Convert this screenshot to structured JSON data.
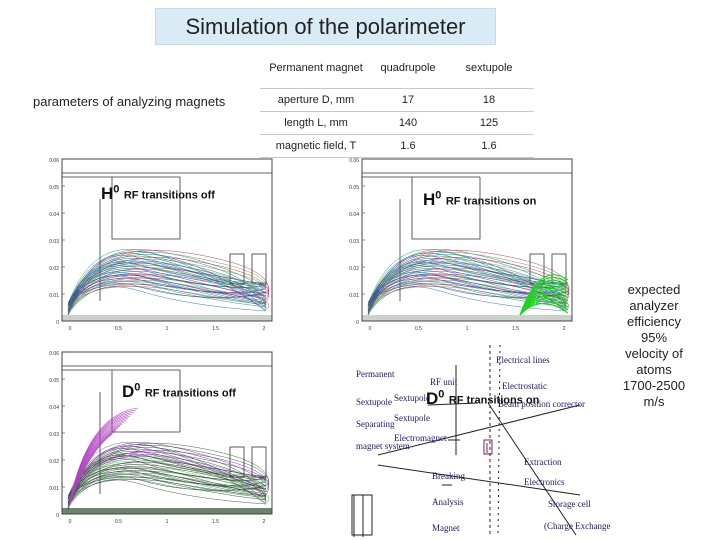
{
  "slide": {
    "title": "Simulation of the polarimeter",
    "side_label": "parameters of analyzing magnets"
  },
  "table": {
    "headers": [
      "Permanent magnet",
      "quadrupole",
      "sextupole"
    ],
    "rows": [
      {
        "label": "aperture D, mm",
        "quadrupole": "17",
        "sextupole": "18"
      },
      {
        "label": "length L, mm",
        "quadrupole": "140",
        "sextupole": "125"
      },
      {
        "label": "magnetic field, T",
        "quadrupole": "1.6",
        "sextupole": "1.6"
      }
    ]
  },
  "panels": {
    "top_left": {
      "isotope": "H",
      "sup": "0",
      "text": "RF transitions off",
      "yticks": [
        "0.06",
        "0.05",
        "0.04",
        "0.03",
        "0.02",
        "0.01",
        "0"
      ],
      "xticks": [
        "0",
        "0.5",
        "1",
        "1.5",
        "2"
      ]
    },
    "top_right": {
      "isotope": "H",
      "sup": "0",
      "text": "RF transitions on",
      "yticks": [
        "0.06",
        "0.05",
        "0.04",
        "0.03",
        "0.02",
        "0.01",
        "0"
      ],
      "xticks": [
        "0",
        "0.5",
        "1",
        "1.5",
        "2"
      ]
    },
    "bottom_left": {
      "isotope": "D",
      "sup": "0",
      "text": "RF transitions off",
      "yticks": [
        "0.06",
        "0.05",
        "0.04",
        "0.03",
        "0.02",
        "0.01",
        "0"
      ],
      "xticks": [
        "0",
        "0.5",
        "1",
        "1.5",
        "2"
      ]
    },
    "bottom_right": {
      "isotope": "D",
      "sup": "0",
      "text": "RF transitions on"
    }
  },
  "schematic_labels": {
    "permanent": "Permanent",
    "sextupole_left": "Sextupole",
    "separating": "Separating",
    "magnet_system": "magnet system",
    "sextupole_mid": "Sextupole",
    "sextupole_mid2": "Sextupole",
    "electromagnet": "Electromagnet",
    "rf_unit": "RF unit",
    "electrical_lines": "Electrical lines",
    "electrostatic": "Electrostatic",
    "beam_position_corrector": "Beam position corrector",
    "breaking": "Breaking",
    "analysis": "Analysis",
    "magnet": "Magnet",
    "extraction": "Extraction",
    "electronics": "Electronics",
    "storage_cell": "Storage cell",
    "charge_exchange": "(Charge Exchange)"
  },
  "notes": [
    "expected",
    "analyzer",
    "efficiency",
    "95%",
    "velocity of",
    "atoms",
    "1700-2500",
    "m/s"
  ]
}
